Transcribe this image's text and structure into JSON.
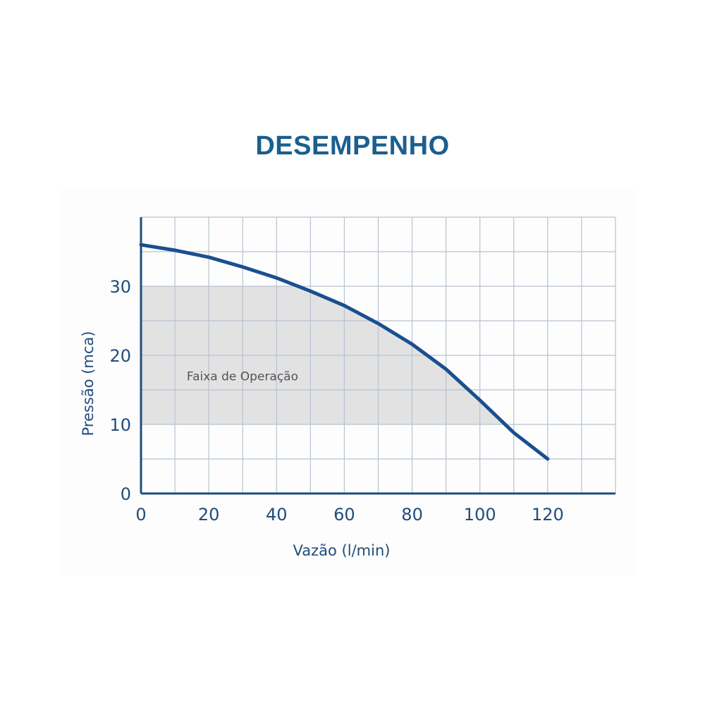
{
  "title": "DESEMPENHO",
  "chart_data": {
    "type": "line",
    "xlabel": "Vazão (l/min)",
    "ylabel": "Pressão (mca)",
    "xlim": [
      0,
      140
    ],
    "ylim": [
      0,
      40
    ],
    "x_ticks": [
      "0",
      "20",
      "40",
      "60",
      "80",
      "100",
      "120"
    ],
    "y_ticks": [
      "0",
      "10",
      "20",
      "30"
    ],
    "grid": true,
    "series": [
      {
        "x": [
          0,
          10,
          20,
          30,
          40,
          50,
          60,
          70,
          80,
          90,
          100,
          110,
          120
        ],
        "y": [
          36,
          35.2,
          34.2,
          32.8,
          31.2,
          29.3,
          27.2,
          24.6,
          21.6,
          18,
          13.5,
          8.8,
          5
        ]
      }
    ],
    "band": {
      "label": "Faixa de Operação",
      "y_range": [
        10,
        30
      ]
    },
    "colors": {
      "line": "#1a4f8f",
      "axis": "#1f4d7a",
      "grid": "#b7c3d2",
      "band": "#e2e2e2"
    }
  }
}
